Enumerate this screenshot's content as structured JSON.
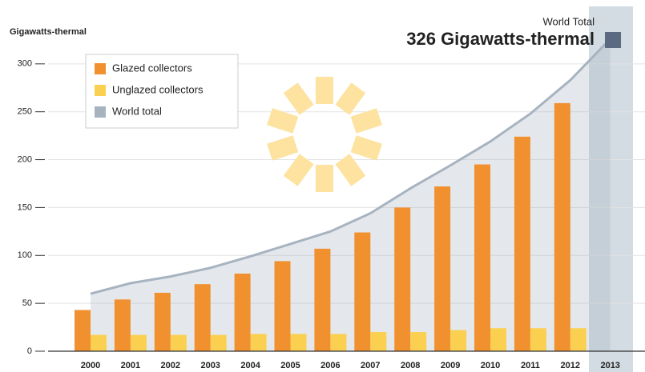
{
  "chart_data": {
    "type": "bar",
    "y_axis_label": "Gigawatts-thermal",
    "annotation_title": "World Total",
    "annotation_value": "326 Gigawatts-thermal",
    "categories": [
      "2000",
      "2001",
      "2002",
      "2003",
      "2004",
      "2005",
      "2006",
      "2007",
      "2008",
      "2009",
      "2010",
      "2011",
      "2012",
      "2013"
    ],
    "series": [
      {
        "name": "Glazed collectors",
        "color": "#f0902e",
        "type": "bar",
        "values": [
          43,
          54,
          61,
          70,
          81,
          94,
          107,
          124,
          150,
          172,
          195,
          224,
          259,
          null
        ]
      },
      {
        "name": "Unglazed collectors",
        "color": "#fbd050",
        "type": "bar",
        "values": [
          17,
          17,
          17,
          17,
          18,
          18,
          18,
          20,
          20,
          22,
          24,
          24,
          24,
          null
        ]
      },
      {
        "name": "World total",
        "color": "#a7b3c0",
        "type": "area",
        "values": [
          60,
          71,
          78,
          87,
          99,
          112,
          125,
          144,
          170,
          194,
          219,
          248,
          283,
          326
        ]
      }
    ],
    "ylim": [
      0,
      360
    ],
    "yticks": [
      0,
      50,
      100,
      150,
      200,
      250,
      300
    ],
    "grid": true
  }
}
